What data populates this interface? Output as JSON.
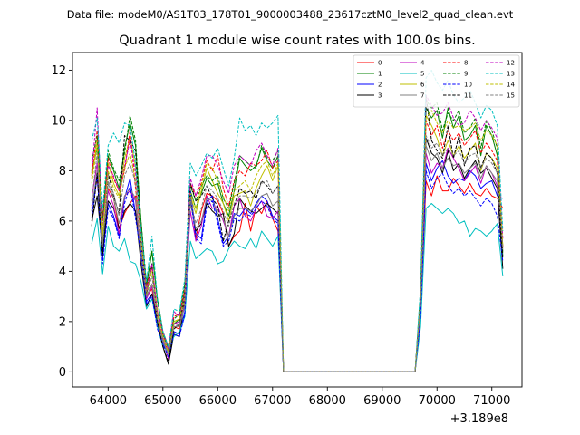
{
  "chart_data": {
    "type": "line",
    "suptitle": "Data file: modeM0/AS1T03_178T01_9000003488_23617cztM0_level2_quad_clean.evt",
    "title": "Quadrant 1 module wise count rates with 100.0s bins.",
    "xlabel": "",
    "ylabel": "",
    "x_offset_label": "+3.189e8",
    "xlim": [
      63350,
      71550
    ],
    "ylim": [
      -0.6,
      12.7
    ],
    "x_ticks": [
      64000,
      65000,
      66000,
      67000,
      68000,
      69000,
      70000,
      71000
    ],
    "x_tick_labels": [
      "64000",
      "65000",
      "66000",
      "67000",
      "68000",
      "69000",
      "70000",
      "71000"
    ],
    "y_ticks": [
      0,
      2,
      4,
      6,
      8,
      10,
      12
    ],
    "y_tick_labels": [
      "0",
      "2",
      "4",
      "6",
      "8",
      "10",
      "12"
    ],
    "legend_location": "upper right",
    "x_segments": [
      {
        "start": 63700,
        "step": 100,
        "count": 35
      },
      {
        "start": 67200,
        "step": 100,
        "count": 25
      },
      {
        "start": 69700,
        "step": 100,
        "count": 16
      }
    ],
    "series": [
      {
        "name": "0",
        "color": "#ff0000",
        "dash": "solid",
        "seg1": [
          6.6,
          7.7,
          5.2,
          7.3,
          6.9,
          5.7,
          6.3,
          6.7,
          7.0,
          4.6,
          3.0,
          3.3,
          1.9,
          1.3,
          0.8,
          1.8,
          1.7,
          2.9,
          7.2,
          5.3,
          6.4,
          7.1,
          7.0,
          6.8,
          6.3,
          5.0,
          5.4,
          5.6,
          6.7,
          5.6,
          6.6,
          6.3,
          6.8,
          6.1,
          5.6
        ],
        "seg3": [
          2.3,
          7.6,
          7.0,
          7.8,
          7.2,
          7.2,
          7.7,
          7.4,
          7.1,
          7.5,
          7.1,
          7.0,
          7.3,
          7.0,
          6.9,
          6.5
        ]
      },
      {
        "name": "1",
        "color": "#008000",
        "dash": "solid",
        "seg1": [
          8.0,
          8.9,
          6.1,
          8.6,
          8.0,
          7.3,
          8.9,
          9.9,
          9.0,
          6.0,
          3.4,
          4.8,
          2.9,
          1.6,
          1.0,
          1.9,
          2.1,
          3.3,
          7.2,
          6.5,
          7.1,
          7.7,
          7.4,
          7.5,
          6.7,
          6.2,
          7.2,
          8.5,
          8.2,
          8.0,
          8.2,
          8.9,
          8.4,
          8.1,
          8.6
        ],
        "seg3": [
          3.1,
          10.5,
          10.1,
          10.4,
          9.3,
          10.5,
          9.7,
          10.2,
          9.2,
          9.4,
          9.8,
          8.6,
          9.8,
          9.4,
          8.6,
          4.6
        ]
      },
      {
        "name": "2",
        "color": "#0000ff",
        "dash": "solid",
        "seg1": [
          6.4,
          7.9,
          4.5,
          6.7,
          6.2,
          5.4,
          6.9,
          7.7,
          6.3,
          4.9,
          2.8,
          3.1,
          1.8,
          1.1,
          0.7,
          1.6,
          1.5,
          2.4,
          7.2,
          5.5,
          5.3,
          6.8,
          7.0,
          6.1,
          5.1,
          5.4,
          6.3,
          6.2,
          6.5,
          6.3,
          6.7,
          7.0,
          6.8,
          6.2,
          6.0
        ],
        "seg3": [
          2.3,
          8.3,
          7.6,
          8.1,
          8.4,
          7.8,
          7.5,
          7.7,
          7.6,
          8.0,
          7.8,
          7.3,
          7.5,
          7.6,
          7.0,
          6.9
        ]
      },
      {
        "name": "3",
        "color": "#000000",
        "dash": "solid",
        "seg1": [
          6.0,
          7.0,
          4.8,
          6.8,
          6.5,
          5.7,
          6.4,
          6.7,
          6.4,
          4.3,
          2.6,
          3.1,
          1.9,
          1.0,
          0.3,
          1.5,
          1.4,
          2.9,
          6.8,
          5.6,
          5.9,
          6.7,
          6.4,
          6.2,
          6.3,
          5.0,
          5.5,
          6.9,
          6.6,
          6.4,
          6.3,
          6.5,
          6.7,
          6.5,
          6.3
        ],
        "seg3": [
          2.9,
          9.3,
          8.7,
          8.5,
          7.9,
          8.8,
          8.0,
          8.3,
          7.7,
          8.1,
          8.4,
          7.9,
          8.1,
          7.7,
          7.3,
          4.1
        ]
      },
      {
        "name": "4",
        "color": "#bf00bf",
        "dash": "solid",
        "seg1": [
          6.9,
          8.3,
          5.3,
          7.2,
          6.6,
          5.5,
          7.0,
          7.2,
          6.8,
          4.6,
          2.9,
          3.4,
          2.1,
          1.3,
          0.5,
          1.9,
          2.0,
          2.6,
          6.4,
          5.2,
          5.8,
          7.0,
          6.5,
          6.6,
          6.0,
          5.4,
          6.6,
          6.9,
          6.2,
          6.0,
          6.5,
          6.8,
          6.2,
          6.1,
          6.4
        ],
        "seg3": [
          2.6,
          8.7,
          7.9,
          8.3,
          8.1,
          8.9,
          8.5,
          8.1,
          7.6,
          7.9,
          8.2,
          7.5,
          8.2,
          7.9,
          7.4,
          5.0
        ]
      },
      {
        "name": "5",
        "color": "#00bfbf",
        "dash": "solid",
        "seg1": [
          5.1,
          6.1,
          3.9,
          5.8,
          5.0,
          4.8,
          5.3,
          4.4,
          4.3,
          3.6,
          2.5,
          2.9,
          1.8,
          1.0,
          0.8,
          1.4,
          1.6,
          2.2,
          5.2,
          4.5,
          4.7,
          4.9,
          4.8,
          4.3,
          4.4,
          4.9,
          5.2,
          5.0,
          4.9,
          5.3,
          4.9,
          5.6,
          5.3,
          5.0,
          5.4
        ],
        "seg3": [
          1.8,
          6.5,
          6.7,
          6.5,
          6.3,
          6.5,
          6.3,
          5.9,
          6.0,
          5.4,
          5.7,
          5.6,
          5.4,
          5.6,
          5.9,
          3.8
        ]
      },
      {
        "name": "6",
        "color": "#bfbf00",
        "dash": "solid",
        "seg1": [
          7.7,
          9.2,
          5.4,
          8.3,
          7.5,
          7.0,
          8.5,
          9.3,
          8.2,
          5.3,
          3.2,
          4.2,
          2.4,
          1.5,
          0.9,
          2.0,
          2.1,
          3.0,
          7.0,
          6.3,
          7.2,
          8.1,
          7.6,
          7.1,
          6.7,
          6.0,
          7.0,
          7.1,
          7.2,
          6.6,
          7.3,
          7.8,
          8.2,
          7.6,
          8.2
        ],
        "seg3": [
          2.8,
          10.2,
          9.8,
          9.3,
          8.6,
          9.2,
          8.6,
          9.0,
          8.5,
          8.8,
          9.1,
          8.0,
          8.7,
          8.5,
          8.1,
          5.0
        ]
      },
      {
        "name": "7",
        "color": "#808080",
        "dash": "solid",
        "seg1": [
          6.5,
          8.0,
          5.1,
          7.5,
          6.9,
          5.9,
          7.0,
          7.3,
          6.9,
          4.5,
          3.0,
          3.5,
          2.1,
          1.2,
          0.7,
          1.8,
          1.8,
          2.6,
          6.7,
          5.7,
          6.0,
          6.9,
          6.8,
          6.3,
          6.1,
          5.4,
          6.2,
          6.5,
          6.5,
          6.4,
          6.6,
          7.0,
          7.1,
          6.6,
          6.8
        ],
        "seg3": [
          2.5,
          9.0,
          8.4,
          8.7,
          8.1,
          8.5,
          8.2,
          8.3,
          7.9,
          8.1,
          8.3,
          7.7,
          8.2,
          7.9,
          7.6,
          4.8
        ]
      },
      {
        "name": "8",
        "color": "#ff0000",
        "dash": "dashed",
        "seg1": [
          7.8,
          9.6,
          6.1,
          8.5,
          7.7,
          7.2,
          8.0,
          9.6,
          7.3,
          5.4,
          3.4,
          4.2,
          2.3,
          1.4,
          1.0,
          2.2,
          2.3,
          3.3,
          7.5,
          7.0,
          7.5,
          8.4,
          8.0,
          8.6,
          7.3,
          6.6,
          7.6,
          8.0,
          7.8,
          8.3,
          8.2,
          8.4,
          8.8,
          8.1,
          8.4
        ],
        "seg3": [
          3.0,
          10.0,
          9.4,
          9.8,
          8.9,
          9.6,
          9.2,
          9.5,
          9.0,
          9.3,
          9.6,
          8.7,
          9.1,
          8.8,
          8.4,
          4.9
        ]
      },
      {
        "name": "9",
        "color": "#008000",
        "dash": "dashed",
        "seg1": [
          8.4,
          9.4,
          6.0,
          8.8,
          8.1,
          7.6,
          8.7,
          10.2,
          9.2,
          6.0,
          3.5,
          4.8,
          2.8,
          1.5,
          0.9,
          2.1,
          2.3,
          3.5,
          7.4,
          6.8,
          7.4,
          7.8,
          7.6,
          7.8,
          6.9,
          6.5,
          7.5,
          8.6,
          8.4,
          8.2,
          8.1,
          9.0,
          8.5,
          8.4,
          8.8
        ],
        "seg3": [
          3.2,
          10.8,
          10.5,
          10.7,
          9.6,
          10.3,
          10.0,
          10.4,
          9.5,
          9.7,
          10.1,
          8.9,
          10.0,
          9.6,
          8.9,
          4.7
        ]
      },
      {
        "name": "10",
        "color": "#0000ff",
        "dash": "dashed",
        "seg1": [
          6.1,
          7.8,
          4.3,
          6.5,
          6.1,
          5.3,
          6.7,
          7.4,
          6.1,
          4.7,
          2.7,
          3.0,
          1.7,
          1.1,
          0.6,
          1.5,
          1.4,
          2.3,
          7.0,
          5.3,
          5.1,
          6.6,
          6.8,
          5.9,
          5.0,
          5.2,
          6.1,
          6.0,
          6.3,
          6.2,
          6.5,
          6.8,
          6.6,
          6.1,
          5.9
        ],
        "seg3": [
          2.2,
          8.0,
          7.3,
          7.7,
          7.9,
          7.4,
          7.1,
          7.3,
          7.0,
          7.2,
          6.9,
          6.6,
          6.9,
          6.7,
          6.2,
          4.4
        ]
      },
      {
        "name": "11",
        "color": "#000000",
        "dash": "dashed",
        "seg1": [
          5.8,
          7.9,
          4.6,
          7.9,
          7.0,
          6.3,
          9.4,
          9.2,
          8.8,
          5.2,
          3.1,
          4.3,
          2.0,
          1.0,
          0.4,
          1.7,
          1.9,
          3.1,
          7.5,
          6.8,
          7.0,
          7.4,
          6.9,
          6.6,
          5.2,
          6.0,
          6.6,
          7.3,
          7.1,
          7.2,
          6.9,
          7.6,
          7.4,
          7.1,
          7.4
        ],
        "seg3": [
          2.9,
          11.0,
          9.2,
          8.8,
          8.5,
          9.8,
          8.5,
          9.4,
          8.2,
          8.9,
          9.0,
          8.1,
          8.7,
          8.5,
          7.9,
          4.5
        ]
      },
      {
        "name": "12",
        "color": "#bf00bf",
        "dash": "dashed",
        "seg1": [
          7.9,
          10.5,
          5.8,
          8.2,
          7.8,
          7.2,
          8.2,
          9.2,
          7.9,
          5.6,
          3.2,
          4.3,
          2.4,
          1.6,
          0.9,
          2.4,
          2.2,
          3.1,
          7.7,
          7.0,
          7.7,
          8.6,
          8.6,
          8.2,
          7.6,
          7.1,
          8.2,
          8.6,
          8.4,
          8.2,
          8.8,
          9.1,
          8.6,
          8.2,
          8.9
        ],
        "seg3": [
          3.1,
          11.0,
          10.6,
          10.2,
          10.3,
          10.7,
          10.1,
          9.8,
          9.9,
          10.4,
          10.1,
          9.6,
          10.0,
          9.7,
          9.3,
          5.3
        ]
      },
      {
        "name": "13",
        "color": "#00bfbf",
        "dash": "dashed",
        "seg1": [
          9.2,
          10.1,
          6.5,
          9.0,
          9.5,
          9.1,
          9.9,
          9.8,
          8.3,
          5.6,
          3.6,
          5.4,
          2.9,
          1.6,
          1.0,
          2.5,
          2.4,
          3.7,
          8.3,
          7.8,
          8.2,
          8.7,
          8.5,
          8.9,
          8.1,
          7.4,
          8.5,
          10.1,
          9.6,
          9.8,
          9.4,
          9.9,
          9.7,
          9.9,
          10.2
        ],
        "seg3": [
          3.4,
          11.7,
          12.0,
          11.5,
          11.2,
          11.6,
          11.0,
          10.7,
          10.9,
          11.2,
          10.7,
          10.1,
          10.6,
          10.4,
          9.8,
          5.6
        ]
      },
      {
        "name": "14",
        "color": "#bfbf00",
        "dash": "dashed",
        "seg1": [
          7.5,
          9.0,
          5.6,
          8.0,
          7.3,
          6.9,
          8.1,
          8.7,
          7.6,
          5.2,
          3.1,
          4.0,
          2.3,
          1.4,
          0.8,
          2.0,
          2.1,
          3.0,
          7.1,
          6.5,
          7.4,
          8.3,
          8.1,
          7.6,
          7.0,
          6.4,
          7.2,
          7.4,
          7.6,
          7.2,
          7.8,
          8.2,
          8.4,
          7.8,
          8.3
        ],
        "seg3": [
          2.8,
          10.1,
          10.4,
          9.9,
          9.5,
          10.0,
          9.7,
          9.8,
          9.6,
          9.7,
          9.9,
          9.2,
          9.6,
          9.4,
          9.0,
          5.0
        ]
      },
      {
        "name": "15",
        "color": "#808080",
        "dash": "dashed",
        "seg1": [
          6.8,
          8.7,
          5.0,
          7.6,
          7.1,
          6.2,
          7.8,
          8.3,
          7.5,
          4.9,
          3.0,
          3.8,
          2.1,
          1.3,
          0.7,
          1.8,
          1.9,
          2.8,
          6.9,
          5.9,
          6.5,
          7.4,
          7.2,
          6.9,
          6.4,
          5.8,
          6.7,
          7.0,
          7.0,
          6.9,
          7.1,
          7.5,
          7.6,
          7.1,
          7.4
        ],
        "seg3": [
          2.7,
          9.4,
          8.9,
          9.1,
          8.6,
          8.9,
          8.6,
          8.8,
          8.3,
          8.6,
          8.7,
          8.1,
          8.5,
          8.3,
          7.9,
          4.9
        ]
      }
    ]
  }
}
